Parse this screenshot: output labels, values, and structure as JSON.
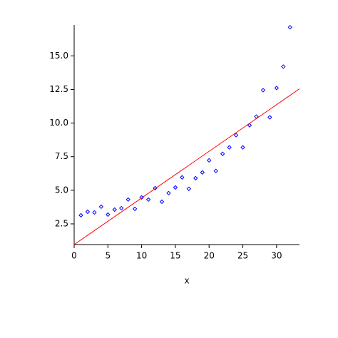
{
  "chart_data": {
    "type": "scatter",
    "x_label": "x",
    "xlim": [
      0,
      33.4
    ],
    "ylim": [
      0.96,
      17.3
    ],
    "xticks": [
      0,
      5,
      10,
      15,
      20,
      25,
      30
    ],
    "yticks": [
      2.5,
      {
        "value": 5,
        "label": "5.0"
      },
      7.5,
      {
        "value": 10,
        "label": "10.0"
      },
      12.5,
      {
        "value": 15,
        "label": "15.0"
      }
    ],
    "grid": false,
    "series": [
      {
        "style": "points",
        "color": "#0000ff",
        "x": [
          1,
          2,
          3,
          4,
          5,
          6,
          7,
          8,
          9,
          10,
          11,
          12,
          13,
          14,
          15,
          16,
          17,
          18,
          19,
          20,
          21,
          22,
          23,
          24,
          25,
          26,
          27,
          28,
          29,
          30,
          31,
          32
        ],
        "values": [
          3.14,
          3.4,
          3.35,
          3.78,
          3.19,
          3.56,
          3.67,
          4.31,
          3.62,
          4.47,
          4.31,
          5.16,
          4.15,
          4.79,
          5.21,
          5.96,
          5.11,
          5.9,
          6.33,
          7.23,
          6.44,
          7.71,
          8.19,
          9.1,
          8.19,
          9.84,
          10.48,
          12.45,
          10.43,
          12.61,
          14.2,
          17.13
        ]
      },
      {
        "style": "line",
        "color": "#ff0000",
        "x": [
          0,
          33.4
        ],
        "values": [
          0.96,
          12.55
        ]
      }
    ]
  }
}
